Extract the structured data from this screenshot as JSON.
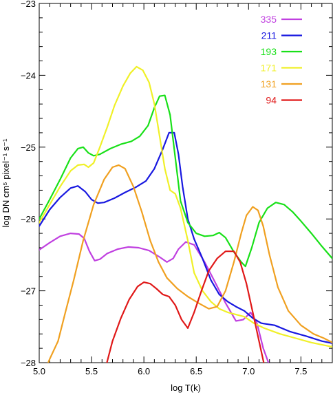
{
  "chart_data": {
    "type": "line",
    "title": "",
    "xlabel": "log T(k)",
    "ylabel": "log DN cm⁵ pixel⁻¹ s⁻¹",
    "xlim": [
      5.0,
      7.8
    ],
    "ylim": [
      -28,
      -23
    ],
    "xticks": [
      5.0,
      5.5,
      6.0,
      6.5,
      7.0,
      7.5
    ],
    "xtick_labels": [
      "5.0",
      "5.5",
      "6.0",
      "6.5",
      "7.0",
      "7.5"
    ],
    "yticks": [
      -28,
      -27,
      -26,
      -25,
      -24,
      -23
    ],
    "ytick_labels": [
      "−28",
      "−27",
      "−26",
      "−25",
      "−24",
      "−23"
    ],
    "legend_position": "top-right",
    "grid": false,
    "series": [
      {
        "name": "335",
        "color": "#c040e0",
        "points": [
          [
            5.0,
            -26.43
          ],
          [
            5.1,
            -26.33
          ],
          [
            5.2,
            -26.24
          ],
          [
            5.3,
            -26.2
          ],
          [
            5.38,
            -26.21
          ],
          [
            5.43,
            -26.27
          ],
          [
            5.48,
            -26.45
          ],
          [
            5.53,
            -26.58
          ],
          [
            5.58,
            -26.56
          ],
          [
            5.65,
            -26.48
          ],
          [
            5.75,
            -26.42
          ],
          [
            5.85,
            -26.39
          ],
          [
            5.95,
            -26.4
          ],
          [
            6.05,
            -26.44
          ],
          [
            6.15,
            -26.53
          ],
          [
            6.22,
            -26.6
          ],
          [
            6.28,
            -26.55
          ],
          [
            6.33,
            -26.42
          ],
          [
            6.4,
            -26.32
          ],
          [
            6.48,
            -26.36
          ],
          [
            6.58,
            -26.6
          ],
          [
            6.68,
            -26.88
          ],
          [
            6.78,
            -27.17
          ],
          [
            6.88,
            -27.42
          ],
          [
            6.95,
            -27.4
          ],
          [
            7.02,
            -27.3
          ],
          [
            7.08,
            -27.45
          ],
          [
            7.14,
            -27.8
          ],
          [
            7.19,
            -28.0
          ]
        ]
      },
      {
        "name": "211",
        "color": "#1818e0",
        "points": [
          [
            5.0,
            -26.1
          ],
          [
            5.1,
            -25.87
          ],
          [
            5.2,
            -25.7
          ],
          [
            5.3,
            -25.57
          ],
          [
            5.37,
            -25.54
          ],
          [
            5.44,
            -25.62
          ],
          [
            5.5,
            -25.73
          ],
          [
            5.56,
            -25.78
          ],
          [
            5.62,
            -25.77
          ],
          [
            5.72,
            -25.71
          ],
          [
            5.82,
            -25.63
          ],
          [
            5.92,
            -25.56
          ],
          [
            6.02,
            -25.47
          ],
          [
            6.1,
            -25.3
          ],
          [
            6.18,
            -25.03
          ],
          [
            6.24,
            -24.8
          ],
          [
            6.29,
            -24.8
          ],
          [
            6.33,
            -25.1
          ],
          [
            6.37,
            -25.55
          ],
          [
            6.42,
            -26.0
          ],
          [
            6.48,
            -26.28
          ],
          [
            6.56,
            -26.55
          ],
          [
            6.64,
            -26.85
          ],
          [
            6.72,
            -27.05
          ],
          [
            6.8,
            -27.15
          ],
          [
            6.88,
            -27.22
          ],
          [
            6.96,
            -27.28
          ],
          [
            7.04,
            -27.38
          ],
          [
            7.12,
            -27.45
          ],
          [
            7.25,
            -27.48
          ],
          [
            7.4,
            -27.57
          ],
          [
            7.55,
            -27.63
          ],
          [
            7.7,
            -27.7
          ],
          [
            7.8,
            -27.73
          ]
        ]
      },
      {
        "name": "193",
        "color": "#18e018",
        "points": [
          [
            5.0,
            -26.0
          ],
          [
            5.1,
            -25.73
          ],
          [
            5.2,
            -25.45
          ],
          [
            5.3,
            -25.15
          ],
          [
            5.37,
            -25.02
          ],
          [
            5.42,
            -25.0
          ],
          [
            5.47,
            -25.08
          ],
          [
            5.52,
            -25.12
          ],
          [
            5.58,
            -25.1
          ],
          [
            5.68,
            -25.02
          ],
          [
            5.78,
            -24.96
          ],
          [
            5.88,
            -24.92
          ],
          [
            5.96,
            -24.85
          ],
          [
            6.04,
            -24.7
          ],
          [
            6.1,
            -24.45
          ],
          [
            6.15,
            -24.29
          ],
          [
            6.2,
            -24.28
          ],
          [
            6.25,
            -24.55
          ],
          [
            6.3,
            -25.15
          ],
          [
            6.35,
            -25.75
          ],
          [
            6.42,
            -26.05
          ],
          [
            6.5,
            -26.2
          ],
          [
            6.58,
            -26.24
          ],
          [
            6.66,
            -26.23
          ],
          [
            6.72,
            -26.19
          ],
          [
            6.78,
            -26.26
          ],
          [
            6.86,
            -26.46
          ],
          [
            6.93,
            -26.6
          ],
          [
            6.97,
            -26.66
          ],
          [
            7.03,
            -26.4
          ],
          [
            7.1,
            -26.05
          ],
          [
            7.18,
            -25.85
          ],
          [
            7.26,
            -25.77
          ],
          [
            7.34,
            -25.8
          ],
          [
            7.42,
            -25.9
          ],
          [
            7.5,
            -26.03
          ],
          [
            7.6,
            -26.2
          ],
          [
            7.7,
            -26.38
          ],
          [
            7.8,
            -26.55
          ]
        ]
      },
      {
        "name": "171",
        "color": "#f0f028",
        "points": [
          [
            5.0,
            -26.05
          ],
          [
            5.1,
            -25.8
          ],
          [
            5.2,
            -25.55
          ],
          [
            5.3,
            -25.33
          ],
          [
            5.37,
            -25.25
          ],
          [
            5.43,
            -25.24
          ],
          [
            5.47,
            -25.28
          ],
          [
            5.52,
            -25.22
          ],
          [
            5.58,
            -25.0
          ],
          [
            5.65,
            -24.72
          ],
          [
            5.72,
            -24.42
          ],
          [
            5.8,
            -24.15
          ],
          [
            5.87,
            -23.97
          ],
          [
            5.93,
            -23.88
          ],
          [
            5.99,
            -23.93
          ],
          [
            6.05,
            -24.1
          ],
          [
            6.1,
            -24.4
          ],
          [
            6.15,
            -24.85
          ],
          [
            6.2,
            -25.3
          ],
          [
            6.25,
            -25.6
          ],
          [
            6.3,
            -25.65
          ],
          [
            6.35,
            -25.85
          ],
          [
            6.42,
            -26.3
          ],
          [
            6.48,
            -26.75
          ],
          [
            6.56,
            -27.0
          ],
          [
            6.64,
            -27.15
          ],
          [
            6.72,
            -27.25
          ],
          [
            6.8,
            -27.3
          ],
          [
            6.88,
            -27.33
          ],
          [
            6.96,
            -27.36
          ],
          [
            7.05,
            -27.45
          ],
          [
            7.15,
            -27.52
          ],
          [
            7.3,
            -27.6
          ],
          [
            7.45,
            -27.66
          ],
          [
            7.6,
            -27.72
          ],
          [
            7.7,
            -27.75
          ],
          [
            7.8,
            -27.78
          ]
        ]
      },
      {
        "name": "131",
        "color": "#f0a020",
        "points": [
          [
            5.0,
            -28.3
          ],
          [
            5.1,
            -27.95
          ],
          [
            5.18,
            -27.7
          ],
          [
            5.25,
            -27.3
          ],
          [
            5.33,
            -26.85
          ],
          [
            5.42,
            -26.3
          ],
          [
            5.52,
            -25.8
          ],
          [
            5.62,
            -25.45
          ],
          [
            5.7,
            -25.28
          ],
          [
            5.76,
            -25.25
          ],
          [
            5.82,
            -25.3
          ],
          [
            5.9,
            -25.55
          ],
          [
            5.98,
            -25.9
          ],
          [
            6.06,
            -26.3
          ],
          [
            6.14,
            -26.6
          ],
          [
            6.22,
            -26.82
          ],
          [
            6.32,
            -26.97
          ],
          [
            6.42,
            -27.08
          ],
          [
            6.52,
            -27.17
          ],
          [
            6.62,
            -27.25
          ],
          [
            6.7,
            -27.22
          ],
          [
            6.78,
            -27.0
          ],
          [
            6.86,
            -26.6
          ],
          [
            6.93,
            -26.2
          ],
          [
            6.98,
            -25.95
          ],
          [
            7.04,
            -25.83
          ],
          [
            7.09,
            -25.88
          ],
          [
            7.14,
            -26.1
          ],
          [
            7.2,
            -26.5
          ],
          [
            7.28,
            -26.95
          ],
          [
            7.38,
            -27.28
          ],
          [
            7.5,
            -27.48
          ],
          [
            7.62,
            -27.6
          ],
          [
            7.72,
            -27.66
          ],
          [
            7.8,
            -27.72
          ]
        ]
      },
      {
        "name": "94",
        "color": "#e01818",
        "points": [
          [
            5.62,
            -28.15
          ],
          [
            5.7,
            -27.7
          ],
          [
            5.78,
            -27.38
          ],
          [
            5.86,
            -27.12
          ],
          [
            5.94,
            -26.94
          ],
          [
            6.0,
            -26.88
          ],
          [
            6.06,
            -26.9
          ],
          [
            6.12,
            -26.97
          ],
          [
            6.18,
            -27.05
          ],
          [
            6.24,
            -27.08
          ],
          [
            6.3,
            -27.2
          ],
          [
            6.36,
            -27.4
          ],
          [
            6.42,
            -27.52
          ],
          [
            6.48,
            -27.3
          ],
          [
            6.55,
            -27.0
          ],
          [
            6.62,
            -26.72
          ],
          [
            6.7,
            -26.55
          ],
          [
            6.78,
            -26.45
          ],
          [
            6.86,
            -26.45
          ],
          [
            6.92,
            -26.6
          ],
          [
            6.98,
            -26.9
          ],
          [
            7.04,
            -27.3
          ],
          [
            7.1,
            -27.7
          ],
          [
            7.16,
            -28.1
          ]
        ]
      }
    ]
  }
}
